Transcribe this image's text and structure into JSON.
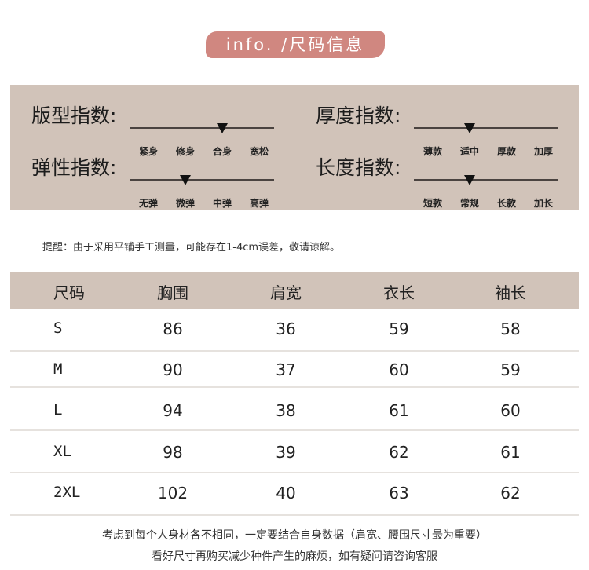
{
  "banner": {
    "title": "info. /尺码信息",
    "color": "#d08780"
  },
  "panel_color": "#d1c3b9",
  "indices": [
    {
      "title": "版型指数:",
      "options": [
        "紧身",
        "修身",
        "合身",
        "宽松"
      ],
      "selected": 2
    },
    {
      "title": "弹性指数:",
      "options": [
        "无弹",
        "微弹",
        "中弹",
        "高弹"
      ],
      "selected": 1
    },
    {
      "title": "厚度指数:",
      "options": [
        "薄款",
        "适中",
        "厚款",
        "加厚"
      ],
      "selected": 1
    },
    {
      "title": "长度指数:",
      "options": [
        "短款",
        "常规",
        "长款",
        "加长"
      ],
      "selected": 1
    }
  ],
  "tip": "提醒：由于采用平铺手工测量，可能存在1-4cm误差，敬请谅解。",
  "table": {
    "headers": [
      "尺码",
      "胸围",
      "肩宽",
      "衣长",
      "袖长"
    ],
    "rows": [
      [
        "S",
        "86",
        "36",
        "59",
        "58"
      ],
      [
        "M",
        "90",
        "37",
        "60",
        "59"
      ],
      [
        "L",
        "94",
        "38",
        "61",
        "60"
      ],
      [
        "XL",
        "98",
        "39",
        "62",
        "61"
      ],
      [
        "2XL",
        "102",
        "40",
        "63",
        "62"
      ]
    ]
  },
  "footer": [
    "考虑到每个人身材各不相同，一定要结合自身数据（肩宽、腰围尺寸最为重要）",
    "看好尺寸再购买减少种件产生的麻烦，如有疑问请咨询客服"
  ]
}
